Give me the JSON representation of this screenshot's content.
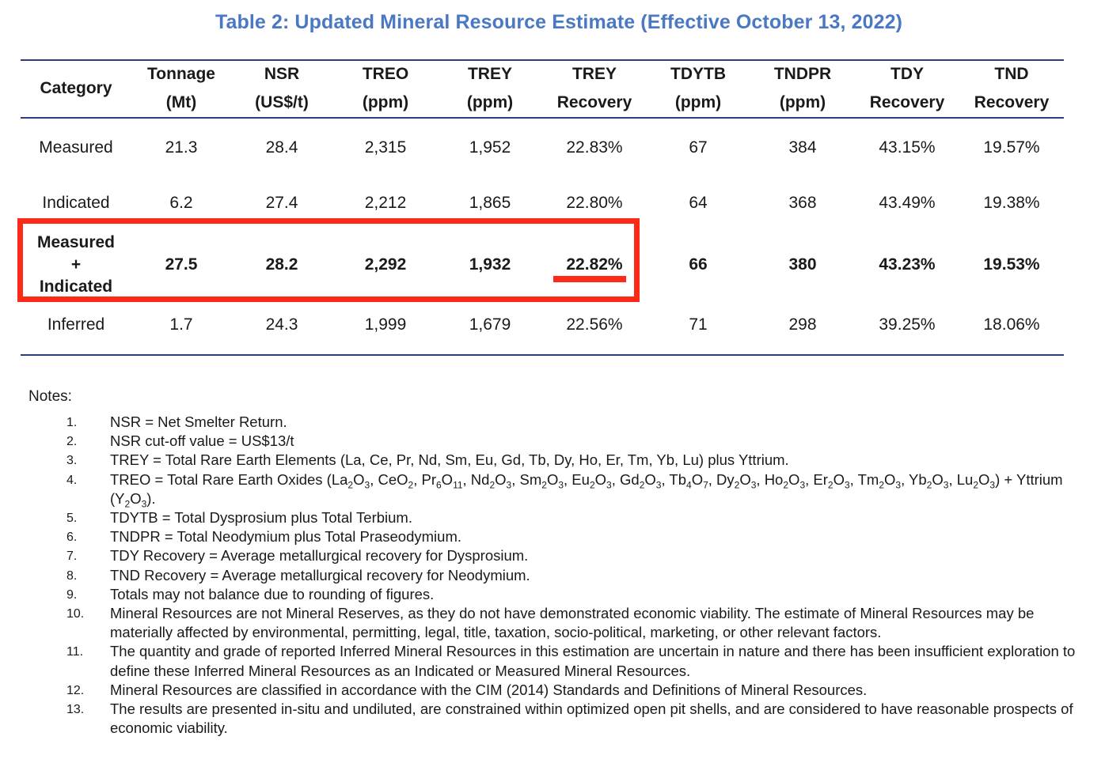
{
  "title": "Table 2: Updated Mineral Resource Estimate (Effective October 13, 2022)",
  "table": {
    "headers": [
      {
        "l1": "Category",
        "l2": ""
      },
      {
        "l1": "Tonnage",
        "l2": "(Mt)"
      },
      {
        "l1": "NSR",
        "l2": "(US$/t)"
      },
      {
        "l1": "TREO",
        "l2": "(ppm)"
      },
      {
        "l1": "TREY",
        "l2": "(ppm)"
      },
      {
        "l1": "TREY",
        "l2": "Recovery"
      },
      {
        "l1": "TDYTB",
        "l2": "(ppm)"
      },
      {
        "l1": "TNDPR",
        "l2": "(ppm)"
      },
      {
        "l1": "TDY",
        "l2": "Recovery"
      },
      {
        "l1": "TND",
        "l2": "Recovery"
      }
    ],
    "rows": [
      {
        "category": "Measured",
        "values": [
          "21.3",
          "28.4",
          "2,315",
          "1,952",
          "22.83%",
          "67",
          "384",
          "43.15%",
          "19.57%"
        ]
      },
      {
        "category": "Indicated",
        "values": [
          "6.2",
          "27.4",
          "2,212",
          "1,865",
          "22.80%",
          "64",
          "368",
          "43.49%",
          "19.38%"
        ]
      },
      {
        "category": "",
        "category_lines": [
          "Measured",
          "+",
          "Indicated"
        ],
        "values": [
          "27.5",
          "28.2",
          "2,292",
          "1,932",
          "22.82%",
          "66",
          "380",
          "43.23%",
          "19.53%"
        ]
      },
      {
        "category": "Inferred",
        "values": [
          "1.7",
          "24.3",
          "1,999",
          "1,679",
          "22.56%",
          "71",
          "298",
          "39.25%",
          "18.06%"
        ]
      }
    ]
  },
  "notes": {
    "heading": "Notes:",
    "items": [
      {
        "num": "1.",
        "text": "NSR = Net Smelter Return."
      },
      {
        "num": "2.",
        "text": "NSR cut-off value = US$13/t"
      },
      {
        "num": "3.",
        "text": "TREY = Total Rare Earth Elements (La, Ce, Pr, Nd, Sm, Eu, Gd, Tb, Dy, Ho, Er, Tm, Yb, Lu) plus Yttrium."
      },
      {
        "num": "4.",
        "text": "TREO = Total Rare Earth Oxides (La2O3, CeO2, Pr6O11, Nd2O3, Sm2O3, Eu2O3, Gd2O3, Tb4O7, Dy2O3, Ho2O3, Er2O3, Tm2O3, Yb2O3, Lu2O3) + Yttrium (Y2O3)."
      },
      {
        "num": "5.",
        "text": "TDYTB = Total Dysprosium plus Total Terbium."
      },
      {
        "num": "6.",
        "text": "TNDPR = Total Neodymium plus Total Praseodymium."
      },
      {
        "num": "7.",
        "text": "TDY Recovery = Average metallurgical recovery for Dysprosium."
      },
      {
        "num": "8.",
        "text": "TND Recovery = Average metallurgical recovery for Neodymium."
      },
      {
        "num": "9.",
        "text": "Totals may not balance due to rounding of figures."
      },
      {
        "num": "10.",
        "text": "Mineral Resources are not Mineral Reserves, as they do not have demonstrated economic viability. The estimate of Mineral Resources may be materially affected by environmental, permitting, legal, title, taxation, socio-political, marketing, or other relevant factors."
      },
      {
        "num": "11.",
        "text": "The quantity and grade of reported Inferred Mineral Resources in this estimation are uncertain in nature and there has been insufficient exploration to define these Inferred Mineral Resources as an Indicated or Measured Mineral Resources."
      },
      {
        "num": "12.",
        "text": "Mineral Resources are classified in accordance with the CIM (2014) Standards and Definitions of Mineral Resources."
      },
      {
        "num": "13.",
        "text": "The results are presented in-situ and undiluted, are constrained within optimized open pit shells, and are considered to have reasonable prospects of economic viability."
      }
    ]
  },
  "colors": {
    "title": "#4a78c2",
    "rule": "#2c3f7a",
    "highlight": "#fc2a17"
  }
}
